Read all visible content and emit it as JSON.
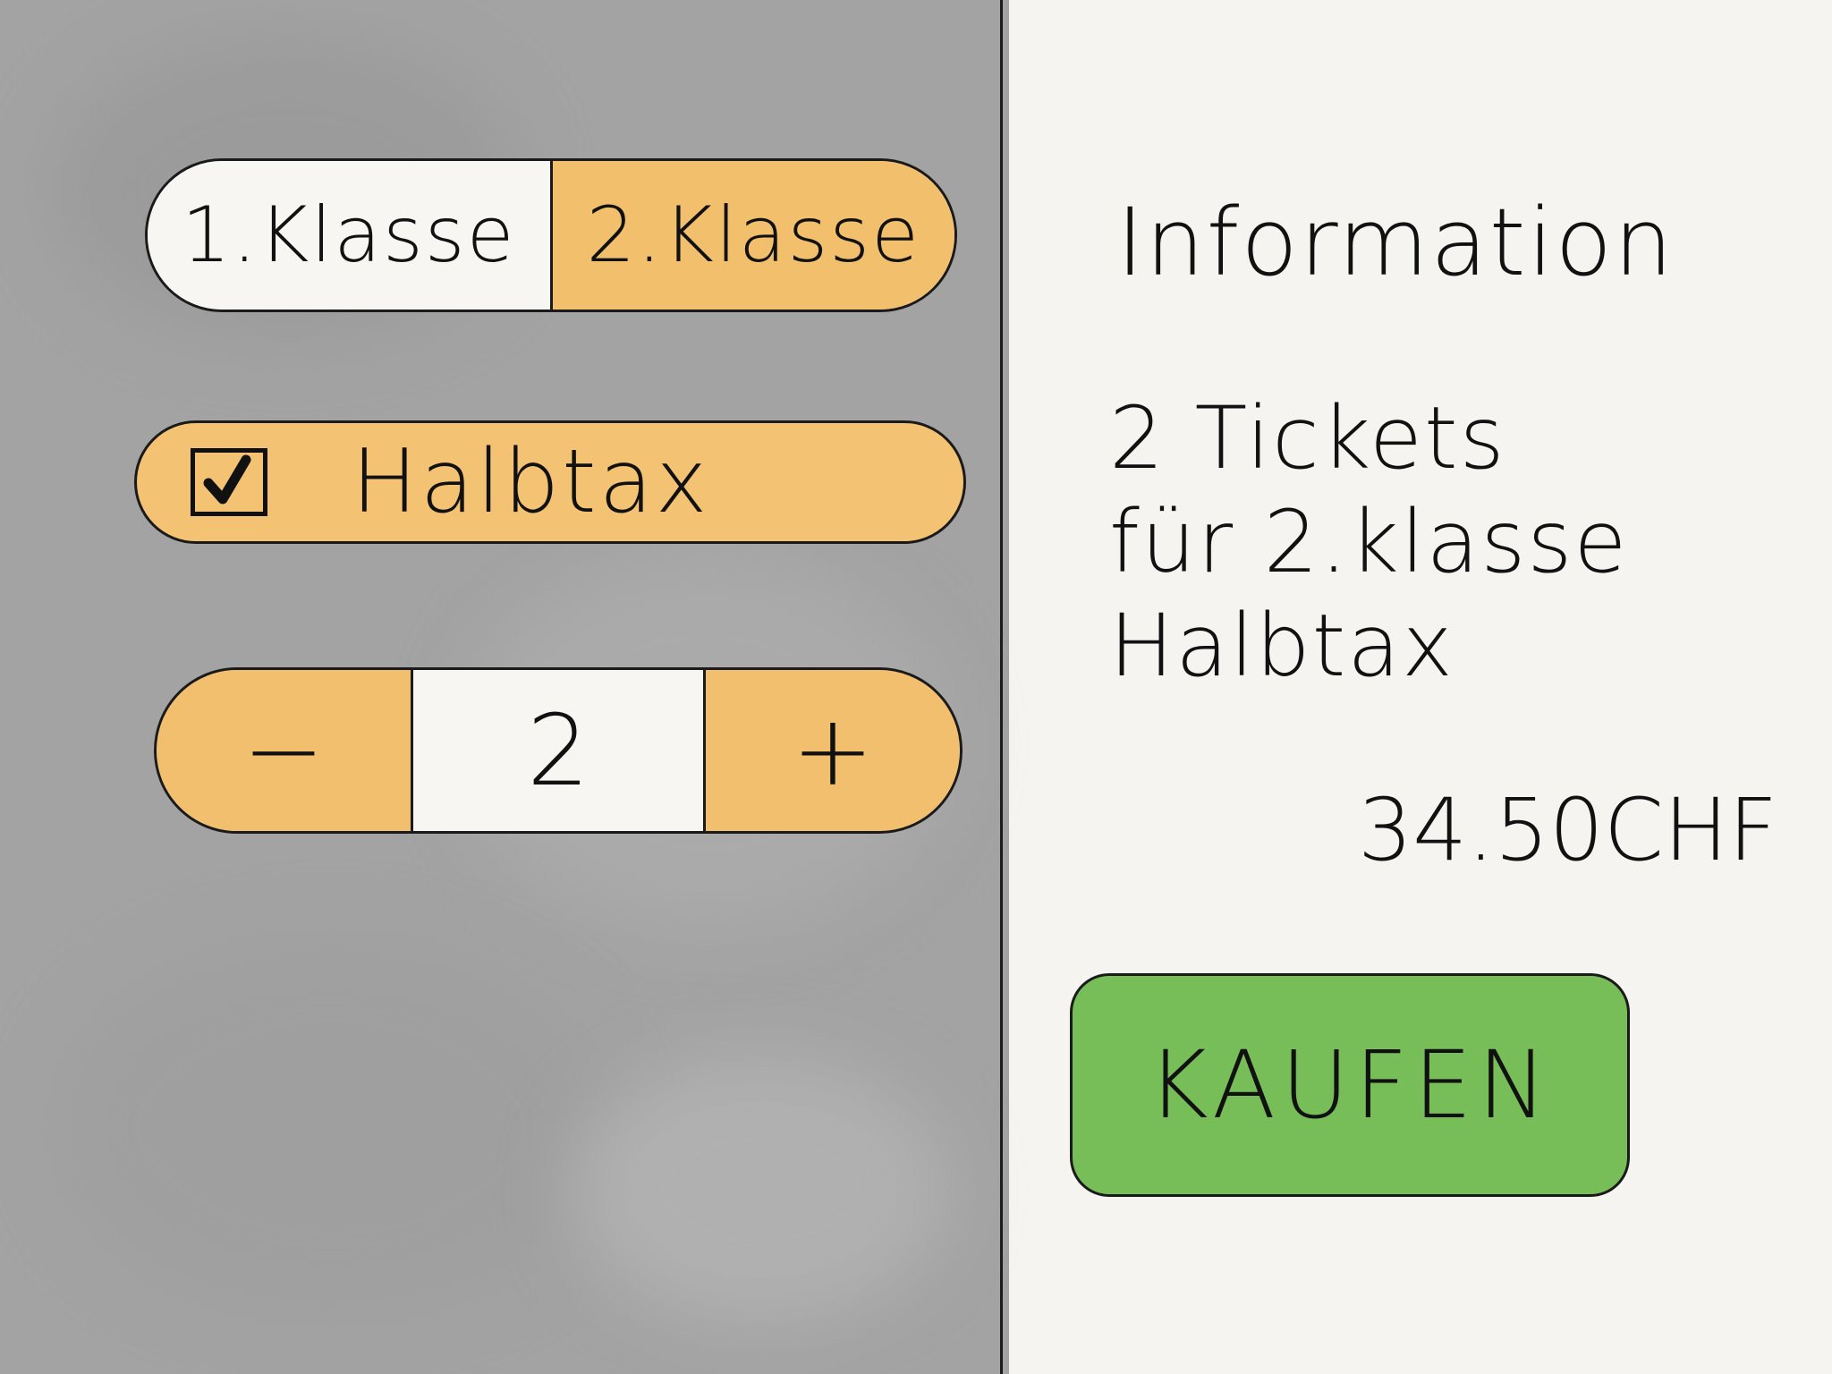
{
  "class_selector": {
    "options": [
      "1.Klasse",
      "2.Klasse"
    ],
    "selected": "2.Klasse"
  },
  "halbtax": {
    "label": "Halbtax",
    "checked": true
  },
  "quantity": {
    "decrement_symbol": "−",
    "value": "2",
    "increment_symbol": "+"
  },
  "information": {
    "title": "Information",
    "tickets_line": "2 Tickets",
    "class_line": "für 2.klasse",
    "discount_line": "Halbtax",
    "price": "34.50CHF"
  },
  "buy_button": {
    "label": "KAUFEN"
  },
  "colors": {
    "selected_orange": "#f2c06d",
    "buy_green": "#78be58",
    "panel_gray": "#a3a3a3",
    "paper": "#f5f4f1"
  },
  "icons": {
    "checkbox": "checkmark-icon"
  }
}
